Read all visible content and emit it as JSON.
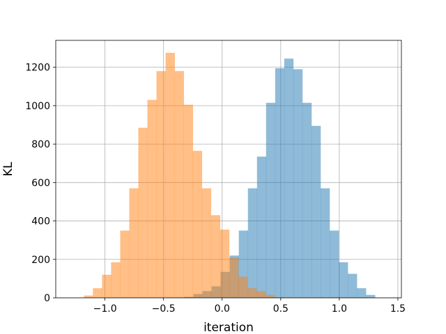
{
  "chart_data": {
    "type": "histogram",
    "title": "",
    "xlabel": "iteration",
    "ylabel": "KL",
    "xlim": [
      -1.42,
      1.53
    ],
    "ylim": [
      0,
      1340
    ],
    "grid": true,
    "xticks": [
      -1.0,
      -0.5,
      0.0,
      0.5,
      1.0,
      1.5
    ],
    "xtick_labels": [
      "−1.0",
      "−0.5",
      "0.0",
      "0.5",
      "1.0",
      "1.5"
    ],
    "yticks": [
      0,
      200,
      400,
      600,
      800,
      1000,
      1200
    ],
    "ytick_labels": [
      "0",
      "200",
      "400",
      "600",
      "800",
      "1000",
      "1200"
    ],
    "series": [
      {
        "color": "#1f77b4",
        "alpha": 0.5,
        "bin_start": -0.4,
        "bin_width": 0.0775,
        "counts": [
          2,
          5,
          20,
          35,
          60,
          135,
          220,
          350,
          570,
          735,
          1015,
          1195,
          1245,
          1190,
          1015,
          895,
          570,
          350,
          185,
          125,
          50,
          15
        ]
      },
      {
        "color": "#ff7f0e",
        "alpha": 0.5,
        "bin_start": -1.18,
        "bin_width": 0.0775,
        "counts": [
          12,
          50,
          120,
          185,
          350,
          570,
          885,
          1030,
          1180,
          1275,
          1180,
          1005,
          765,
          570,
          430,
          355,
          210,
          110,
          50,
          35,
          15,
          3
        ]
      }
    ]
  }
}
